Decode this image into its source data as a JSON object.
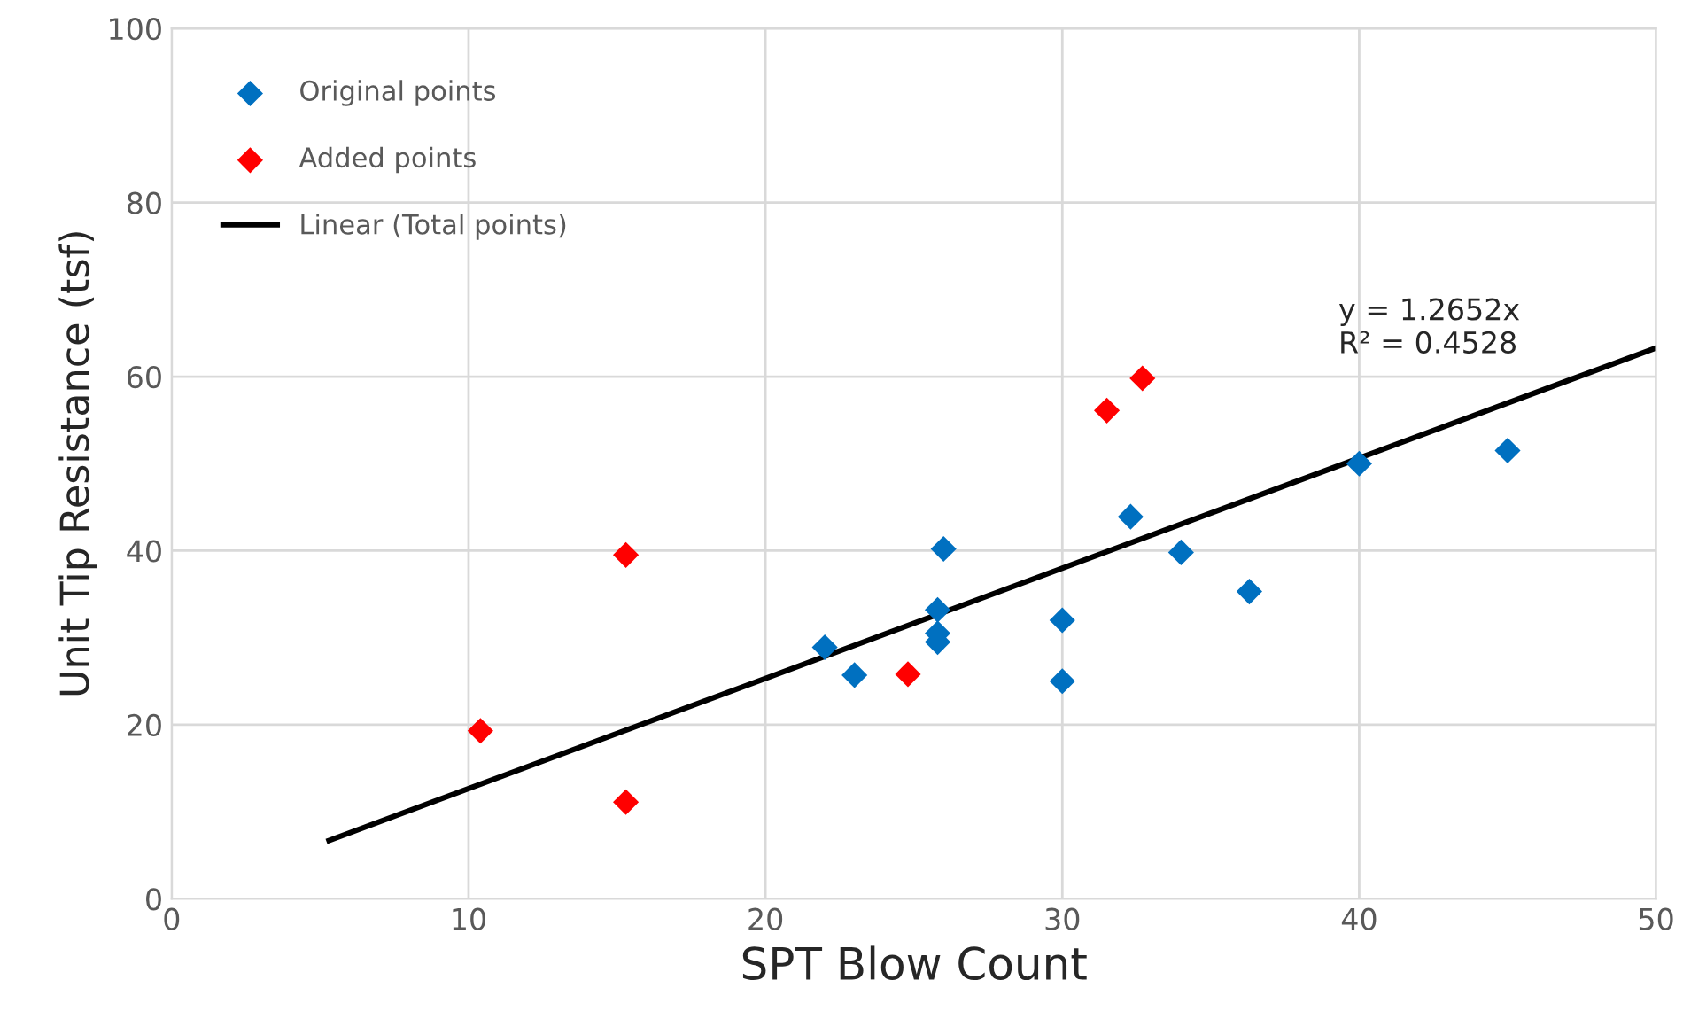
{
  "chart_data": {
    "type": "scatter",
    "xlabel": "SPT Blow Count",
    "ylabel": "Unit Tip Resistance (tsf)",
    "xlim": [
      0,
      50
    ],
    "ylim": [
      0,
      100
    ],
    "xticks": [
      0,
      10,
      20,
      30,
      40,
      50
    ],
    "yticks": [
      0,
      20,
      40,
      60,
      80,
      100
    ],
    "grid": true,
    "legend": "top left",
    "marker": "diamond",
    "series": [
      {
        "name": "Original points",
        "color": "#0070c0",
        "x": [
          22,
          23,
          25.8,
          25.8,
          25.8,
          26,
          30,
          30,
          32.3,
          34,
          36.3,
          40,
          45
        ],
        "values": [
          28.9,
          25.7,
          33.2,
          30.5,
          29.5,
          40.2,
          32,
          25,
          43.9,
          39.8,
          35.3,
          50,
          51.5
        ]
      },
      {
        "name": "Added points",
        "color": "#ff0000",
        "x": [
          10.4,
          15.3,
          15.3,
          24.8,
          31.5,
          32.7
        ],
        "values": [
          19.3,
          39.5,
          11.1,
          25.8,
          56.1,
          59.8
        ]
      },
      {
        "name": "Linear (Total points)",
        "type": "line",
        "color": "#000000",
        "marker": "none",
        "line_style": "solid",
        "x": [
          5.3,
          50
        ],
        "values": [
          6.7,
          63.3
        ]
      }
    ],
    "annotations": [
      "y = 1.2652x\nR² = 0.4528"
    ]
  }
}
